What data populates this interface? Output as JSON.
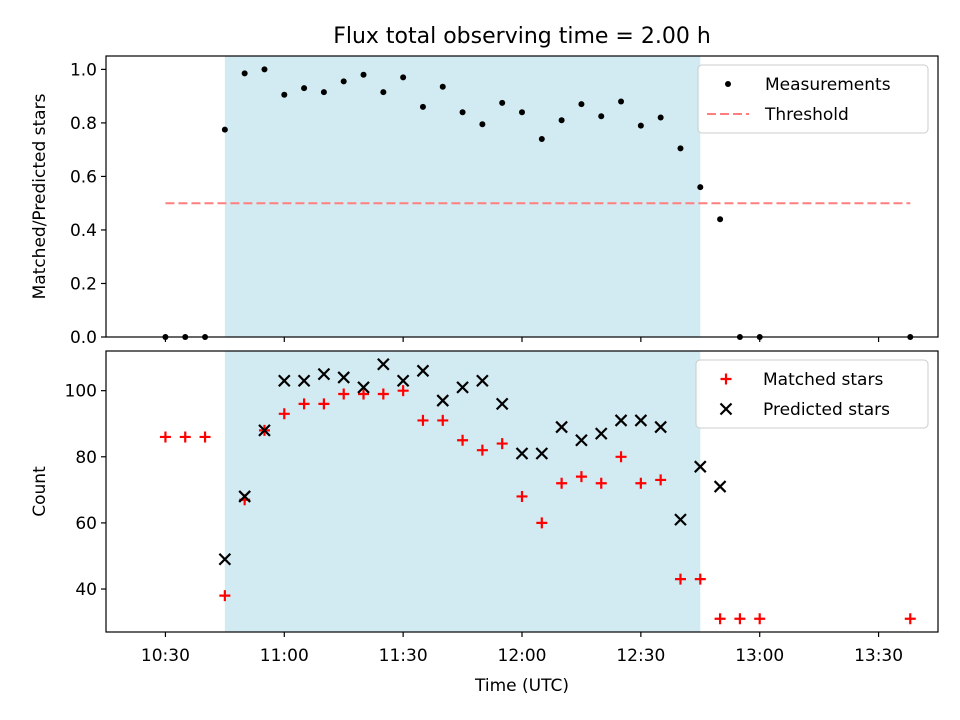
{
  "title": "Flux total observing time = 2.00 h",
  "colors": {
    "observing_window": "#add8e6",
    "measurement": "#000000",
    "threshold": "#ff7f7f",
    "matched": "#ff0000",
    "predicted": "#000000"
  },
  "chart_data": [
    {
      "type": "scatter",
      "panel": "top",
      "ylabel": "Matched/Predicted stars",
      "xlabel": "",
      "xlim": [
        "10:15",
        "13:45"
      ],
      "ylim": [
        0,
        1.05
      ],
      "yticks": [
        0.0,
        0.2,
        0.4,
        0.6,
        0.8,
        1.0
      ],
      "ytick_labels": [
        "0.0",
        "0.2",
        "0.4",
        "0.6",
        "0.8",
        "1.0"
      ],
      "xticks": [
        "10:30",
        "11:00",
        "11:30",
        "12:00",
        "12:30",
        "13:00",
        "13:30"
      ],
      "shaded_region": [
        "10:45",
        "12:45"
      ],
      "legend_position": "upper right",
      "legend": [
        "Measurements",
        "Threshold"
      ],
      "series": [
        {
          "name": "Measurements",
          "marker": "dot",
          "x": [
            "10:30",
            "10:35",
            "10:40",
            "10:45",
            "10:50",
            "10:55",
            "11:00",
            "11:05",
            "11:10",
            "11:15",
            "11:20",
            "11:25",
            "11:30",
            "11:35",
            "11:40",
            "11:45",
            "11:50",
            "11:55",
            "12:00",
            "12:05",
            "12:10",
            "12:15",
            "12:20",
            "12:25",
            "12:30",
            "12:35",
            "12:40",
            "12:45",
            "12:50",
            "12:55",
            "13:00",
            "13:38"
          ],
          "y": [
            0.0,
            0.0,
            0.0,
            0.775,
            0.985,
            1.0,
            0.905,
            0.93,
            0.915,
            0.955,
            0.98,
            0.915,
            0.97,
            0.86,
            0.935,
            0.84,
            0.795,
            0.875,
            0.84,
            0.74,
            0.81,
            0.87,
            0.825,
            0.88,
            0.79,
            0.82,
            0.705,
            0.56,
            0.44,
            0.0,
            0.0,
            0.0
          ]
        },
        {
          "name": "Threshold",
          "marker": "dashed-line",
          "x": [
            "10:30",
            "13:38"
          ],
          "y": [
            0.5,
            0.5
          ]
        }
      ]
    },
    {
      "type": "scatter",
      "panel": "bottom",
      "ylabel": "Count",
      "xlabel": "Time (UTC)",
      "xlim": [
        "10:15",
        "13:45"
      ],
      "ylim": [
        27,
        112
      ],
      "yticks": [
        40,
        60,
        80,
        100
      ],
      "ytick_labels": [
        "40",
        "60",
        "80",
        "100"
      ],
      "xticks": [
        "10:30",
        "11:00",
        "11:30",
        "12:00",
        "12:30",
        "13:00",
        "13:30"
      ],
      "xtick_labels": [
        "10:30",
        "11:00",
        "11:30",
        "12:00",
        "12:30",
        "13:00",
        "13:30"
      ],
      "shaded_region": [
        "10:45",
        "12:45"
      ],
      "legend_position": "upper right",
      "legend": [
        "Matched stars",
        "Predicted stars"
      ],
      "series": [
        {
          "name": "Matched stars",
          "marker": "plus",
          "x": [
            "10:30",
            "10:35",
            "10:40",
            "10:45",
            "10:50",
            "10:55",
            "11:00",
            "11:05",
            "11:10",
            "11:15",
            "11:20",
            "11:25",
            "11:30",
            "11:35",
            "11:40",
            "11:45",
            "11:50",
            "11:55",
            "12:00",
            "12:05",
            "12:10",
            "12:15",
            "12:20",
            "12:25",
            "12:30",
            "12:35",
            "12:40",
            "12:45",
            "12:50",
            "12:55",
            "13:00",
            "13:38"
          ],
          "y": [
            86,
            86,
            86,
            38,
            67,
            88,
            93,
            96,
            96,
            99,
            99,
            99,
            100,
            91,
            91,
            85,
            82,
            84,
            68,
            60,
            72,
            74,
            72,
            80,
            72,
            73,
            43,
            43,
            31,
            31,
            31,
            31
          ]
        },
        {
          "name": "Predicted stars",
          "marker": "x",
          "x": [
            "10:45",
            "10:50",
            "10:55",
            "11:00",
            "11:05",
            "11:10",
            "11:15",
            "11:20",
            "11:25",
            "11:30",
            "11:35",
            "11:40",
            "11:45",
            "11:50",
            "11:55",
            "12:00",
            "12:05",
            "12:10",
            "12:15",
            "12:20",
            "12:25",
            "12:30",
            "12:35",
            "12:40",
            "12:45",
            "12:50"
          ],
          "y": [
            49,
            68,
            88,
            103,
            103,
            105,
            104,
            101,
            108,
            103,
            106,
            97,
            101,
            103,
            96,
            81,
            81,
            89,
            85,
            87,
            91,
            91,
            89,
            61,
            77,
            71
          ]
        }
      ]
    }
  ]
}
